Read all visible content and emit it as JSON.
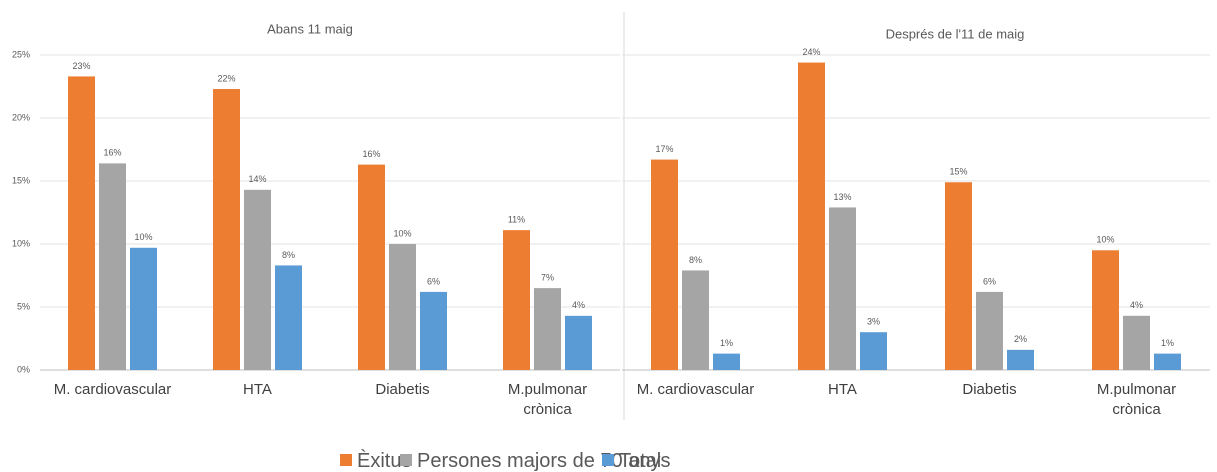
{
  "chart_data": [
    {
      "type": "bar",
      "title": "Abans 11 maig",
      "categories": [
        "M. cardiovascular",
        "HTA",
        "Diabetis",
        "M.pulmonar\ncrònica"
      ],
      "series": [
        {
          "name": "Èxitus",
          "color": "#ed7d31",
          "values": [
            23.3,
            22.3,
            16.3,
            11.1
          ],
          "value_labels": [
            "23%",
            "22%",
            "16%",
            "11%"
          ]
        },
        {
          "name": "Persones majors de 70 anys",
          "color": "#a5a5a5",
          "values": [
            16.4,
            14.3,
            10.0,
            6.5
          ],
          "value_labels": [
            "16%",
            "14%",
            "10%",
            "7%"
          ]
        },
        {
          "name": "Total",
          "color": "#5b9bd5",
          "values": [
            9.7,
            8.3,
            6.2,
            4.3
          ],
          "value_labels": [
            "10%",
            "8%",
            "6%",
            "4%"
          ]
        }
      ],
      "ylim": [
        0,
        25
      ],
      "yticks": [
        {
          "value": 0,
          "label": "0%"
        },
        {
          "value": 5,
          "label": "5%"
        },
        {
          "value": 10,
          "label": "10%"
        },
        {
          "value": 15,
          "label": "15%"
        },
        {
          "value": 20,
          "label": "20%"
        },
        {
          "value": 25,
          "label": "25%"
        }
      ],
      "ytick_labels": true,
      "grid": true
    },
    {
      "type": "bar",
      "title": "Després de l'11 de maig",
      "categories": [
        "M. cardiovascular",
        "HTA",
        "Diabetis",
        "M.pulmonar\ncrònica"
      ],
      "series": [
        {
          "color": "#ed7d31",
          "values": [
            16.7,
            24.4,
            14.9,
            9.5
          ],
          "value_labels": [
            "17%",
            "24%",
            "15%",
            "10%"
          ]
        },
        {
          "color": "#a5a5a5",
          "values": [
            7.9,
            12.9,
            6.2,
            4.3
          ],
          "value_labels": [
            "8%",
            "13%",
            "6%",
            "4%"
          ]
        },
        {
          "color": "#5b9bd5",
          "values": [
            1.3,
            3.0,
            1.6,
            1.3
          ],
          "value_labels": [
            "1%",
            "3%",
            "2%",
            "1%"
          ]
        }
      ],
      "ylim": [
        0,
        25
      ],
      "yticks": [
        0,
        5,
        10,
        15,
        20,
        25
      ],
      "ytick_labels": false,
      "grid": true
    }
  ]
}
